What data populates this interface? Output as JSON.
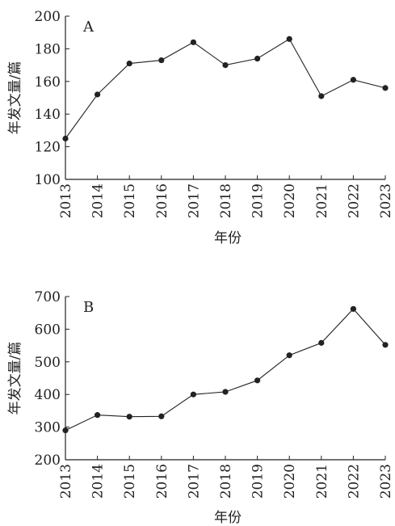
{
  "chart_data": [
    {
      "type": "line",
      "panel_label": "A",
      "title": "",
      "xlabel": "年份",
      "ylabel": "年发文量/篇",
      "categories": [
        "2013",
        "2014",
        "2015",
        "2016",
        "2017",
        "2018",
        "2019",
        "2020",
        "2021",
        "2022",
        "2023"
      ],
      "series": [
        {
          "values": [
            125,
            152,
            171,
            173,
            184,
            170,
            174,
            186,
            151,
            161,
            156
          ]
        }
      ],
      "ylim": [
        100,
        200
      ],
      "yticks": [
        100,
        120,
        140,
        160,
        180,
        200
      ],
      "grid": false,
      "color": "#222222"
    },
    {
      "type": "line",
      "panel_label": "B",
      "title": "",
      "xlabel": "年份",
      "ylabel": "年发文量/篇",
      "categories": [
        "2013",
        "2014",
        "2015",
        "2016",
        "2017",
        "2018",
        "2019",
        "2020",
        "2021",
        "2022",
        "2023"
      ],
      "series": [
        {
          "values": [
            290,
            337,
            332,
            333,
            400,
            408,
            443,
            520,
            558,
            662,
            552
          ]
        }
      ],
      "ylim": [
        200,
        700
      ],
      "yticks": [
        200,
        300,
        400,
        500,
        600,
        700
      ],
      "grid": false,
      "color": "#222222"
    }
  ]
}
